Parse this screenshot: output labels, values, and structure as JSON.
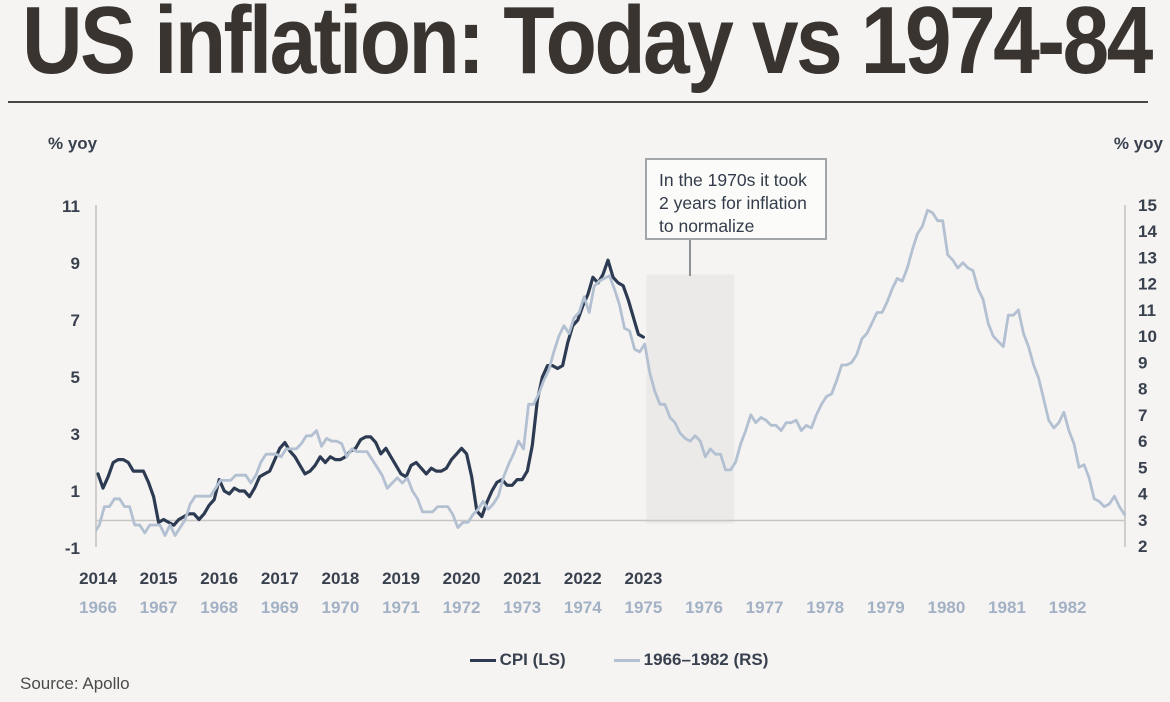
{
  "title": "US inflation: Today vs 1974-84",
  "source": "Source: Apollo",
  "annotation": {
    "text": "In the 1970s it took 2 years for inflation to normalize"
  },
  "legend": [
    {
      "label": "CPI (LS)",
      "color": "#2d3b52"
    },
    {
      "label": "1966–1982 (RS)",
      "color": "#b3c0d2"
    }
  ],
  "colors": {
    "background": "#f5f4f2",
    "dark_line": "#2d3b52",
    "light_line": "#b3c0d2",
    "axis_line": "#c6c5c3",
    "tick_label": "#39414f",
    "light_year_label": "#a3b1c5",
    "shaded_band": "#ebeae8",
    "title": "#3a3431"
  },
  "chart_data": {
    "type": "line",
    "title": "US inflation: Today vs 1974-84",
    "left_axis": {
      "label": "% yoy",
      "ticks": [
        11,
        9,
        7,
        5,
        3,
        1,
        -1
      ],
      "range": [
        -1,
        11
      ]
    },
    "right_axis": {
      "label": "% yoy",
      "ticks": [
        15,
        14,
        13,
        12,
        11,
        10,
        9,
        8,
        7,
        6,
        5,
        4,
        3,
        2
      ],
      "range": [
        2,
        15
      ]
    },
    "x_labels_top": [
      "2014",
      "2015",
      "2016",
      "2017",
      "2018",
      "2019",
      "2020",
      "2021",
      "2022",
      "2023"
    ],
    "x_labels_bottom": [
      "1966",
      "1967",
      "1968",
      "1969",
      "1970",
      "1971",
      "1972",
      "1973",
      "1974",
      "1975",
      "1976",
      "1977",
      "1978",
      "1979",
      "1980",
      "1981",
      "1982"
    ],
    "shaded_region": {
      "from_label_year": 1975.05,
      "to_label_year": 1976.5,
      "top_value_left_scale": 8.6,
      "note": "2 years for inflation to normalize"
    },
    "series": [
      {
        "name": "CPI (LS)",
        "axis": "left",
        "color": "#2d3b52",
        "stroke_width": 3.2,
        "start_label_year": 2014,
        "x_offset_years": 0,
        "monthly_values": [
          1.6,
          1.1,
          1.5,
          2.0,
          2.1,
          2.1,
          2.0,
          1.7,
          1.7,
          1.7,
          1.3,
          0.8,
          -0.1,
          0.0,
          -0.1,
          -0.2,
          0.0,
          0.1,
          0.2,
          0.2,
          0.0,
          0.2,
          0.5,
          0.7,
          1.4,
          1.0,
          0.9,
          1.1,
          1.0,
          1.0,
          0.8,
          1.1,
          1.5,
          1.6,
          1.7,
          2.1,
          2.5,
          2.7,
          2.4,
          2.2,
          1.9,
          1.6,
          1.7,
          1.9,
          2.2,
          2.0,
          2.2,
          2.1,
          2.1,
          2.2,
          2.4,
          2.5,
          2.8,
          2.9,
          2.9,
          2.7,
          2.3,
          2.5,
          2.2,
          1.9,
          1.6,
          1.5,
          1.9,
          2.0,
          1.8,
          1.6,
          1.8,
          1.7,
          1.7,
          1.8,
          2.1,
          2.3,
          2.5,
          2.3,
          1.5,
          0.3,
          0.1,
          0.6,
          1.0,
          1.3,
          1.4,
          1.2,
          1.2,
          1.4,
          1.4,
          1.7,
          2.6,
          4.2,
          5.0,
          5.4,
          5.4,
          5.3,
          5.4,
          6.2,
          6.8,
          7.0,
          7.5,
          7.9,
          8.5,
          8.3,
          8.6,
          9.1,
          8.5,
          8.3,
          8.2,
          7.7,
          7.1,
          6.5,
          6.4
        ]
      },
      {
        "name": "1966–1982 (RS)",
        "axis": "right",
        "color": "#b3c0d2",
        "stroke_width": 2.8,
        "start_label_year": 1966,
        "x_offset_years": -0.4785,
        "monthly_values": [
          1.9,
          2.6,
          2.6,
          2.9,
          2.9,
          2.5,
          2.8,
          3.5,
          3.5,
          3.8,
          3.8,
          3.5,
          3.5,
          2.8,
          2.8,
          2.5,
          2.8,
          2.8,
          2.8,
          2.4,
          2.8,
          2.4,
          2.7,
          3.0,
          3.6,
          3.9,
          3.9,
          3.9,
          3.9,
          4.2,
          4.5,
          4.5,
          4.5,
          4.7,
          4.7,
          4.7,
          4.4,
          4.7,
          5.2,
          5.5,
          5.5,
          5.5,
          5.4,
          5.7,
          5.7,
          5.7,
          5.9,
          6.2,
          6.2,
          6.4,
          5.8,
          6.1,
          6.0,
          6.0,
          5.9,
          5.4,
          5.7,
          5.6,
          5.6,
          5.6,
          5.3,
          5.0,
          4.7,
          4.2,
          4.4,
          4.6,
          4.4,
          4.6,
          4.1,
          3.8,
          3.3,
          3.3,
          3.3,
          3.5,
          3.5,
          3.5,
          3.2,
          2.7,
          2.9,
          2.9,
          3.2,
          3.4,
          3.7,
          3.4,
          3.6,
          3.9,
          4.6,
          5.1,
          5.5,
          6.0,
          5.7,
          7.4,
          7.4,
          7.8,
          8.3,
          8.7,
          9.4,
          10.0,
          10.4,
          10.1,
          10.7,
          10.9,
          11.5,
          10.9,
          11.9,
          12.1,
          12.2,
          12.3,
          11.8,
          11.2,
          10.3,
          10.2,
          9.5,
          9.4,
          9.7,
          8.6,
          7.9,
          7.4,
          7.4,
          6.9,
          6.7,
          6.3,
          6.1,
          6.0,
          6.2,
          6.0,
          5.4,
          5.7,
          5.5,
          5.5,
          4.9,
          4.9,
          5.2,
          5.9,
          6.4,
          7.0,
          6.7,
          6.9,
          6.8,
          6.6,
          6.6,
          6.4,
          6.7,
          6.7,
          6.8,
          6.4,
          6.6,
          6.5,
          7.0,
          7.4,
          7.7,
          7.8,
          8.3,
          8.9,
          8.9,
          9.0,
          9.3,
          9.9,
          10.1,
          10.5,
          10.9,
          10.9,
          11.3,
          11.8,
          12.2,
          12.1,
          12.6,
          13.3,
          13.9,
          14.2,
          14.8,
          14.7,
          14.4,
          14.4,
          13.1,
          12.9,
          12.6,
          12.8,
          12.6,
          12.5,
          11.8,
          11.4,
          10.5,
          10.0,
          9.8,
          9.6,
          10.8,
          10.8,
          11.0,
          10.1,
          9.6,
          8.9,
          8.4,
          7.6,
          6.8,
          6.5,
          6.7,
          7.1,
          6.4,
          5.9,
          5.0,
          5.1,
          4.6,
          3.8,
          3.7,
          3.5,
          3.6,
          3.9,
          3.5,
          3.2
        ]
      }
    ]
  }
}
